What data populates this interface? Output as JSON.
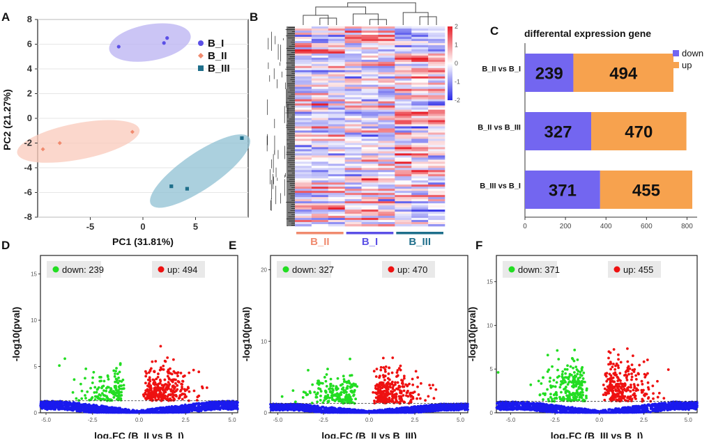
{
  "panel_labels": {
    "a": "A",
    "b": "B",
    "c": "C",
    "d": "D",
    "e": "E",
    "f": "F"
  },
  "chart_data": [
    {
      "id": "A",
      "type": "scatter",
      "title": "",
      "xlabel": "PC1 (31.81%)",
      "ylabel": "PC2 (21.27%)",
      "xlim": [
        -10,
        10
      ],
      "ylim": [
        -8,
        8
      ],
      "xticks": [
        "-5",
        "0",
        "5"
      ],
      "xtick_values": [
        -5,
        0,
        5
      ],
      "yticks": [
        "8",
        "6",
        "4",
        "2",
        "0",
        "-2",
        "-4",
        "-6",
        "-8"
      ],
      "ytick_values": [
        8,
        6,
        4,
        2,
        0,
        -2,
        -4,
        -6,
        -8
      ],
      "series": [
        {
          "name": "B_I",
          "color": "#5b50e6",
          "marker": "circle",
          "ellipse_color": "#b9b1f2",
          "points": [
            [
              -2.3,
              5.8
            ],
            [
              2.3,
              6.5
            ],
            [
              2.0,
              6.1
            ]
          ]
        },
        {
          "name": "B_II",
          "color": "#f08a6e",
          "marker": "diamond",
          "ellipse_color": "#f9c9bb",
          "points": [
            [
              -9.5,
              -2.5
            ],
            [
              -7.9,
              -2.0
            ],
            [
              -1.0,
              -1.1
            ]
          ]
        },
        {
          "name": "B_III",
          "color": "#1f6f8b",
          "marker": "square",
          "ellipse_color": "#8fc0d3",
          "points": [
            [
              2.7,
              -5.5
            ],
            [
              4.2,
              -5.7
            ],
            [
              9.4,
              -1.6
            ]
          ]
        }
      ]
    },
    {
      "id": "B",
      "type": "heatmap",
      "colorbar_ticks": [
        "2",
        "1",
        "0",
        "-1",
        "-2"
      ],
      "colorbar_values": [
        2,
        1,
        0,
        -1,
        -2
      ],
      "groups": [
        {
          "label": "B_II",
          "color": "#f08a6e"
        },
        {
          "label": "B_I",
          "color": "#5b50e6"
        },
        {
          "label": "B_III",
          "color": "#1f6f8b"
        }
      ]
    },
    {
      "id": "C",
      "type": "bar",
      "orientation": "horizontal",
      "stacked": true,
      "title": "differental expression gene",
      "categories": [
        "B_II vs B_I",
        "B_II vs B_III",
        "B_III vs B_I"
      ],
      "series": [
        {
          "name": "down",
          "color": "#7366f0",
          "values": [
            239,
            327,
            371
          ]
        },
        {
          "name": "up",
          "color": "#f7a24e",
          "values": [
            494,
            470,
            455
          ]
        }
      ],
      "xlim": [
        0,
        850
      ],
      "xticks": [
        "0",
        "200",
        "400",
        "600",
        "800"
      ],
      "xtick_values": [
        0,
        200,
        400,
        600,
        800
      ]
    },
    {
      "id": "D",
      "type": "scatter",
      "subtype": "volcano",
      "xlabel_main": "log",
      "xlabel_sub": "2",
      "xlabel_rest": "FC (B_II vs B_I)",
      "ylabel": "-log10(pval)",
      "xlim": [
        -5.3,
        5.3
      ],
      "ylim": [
        0,
        17
      ],
      "xticks": [
        "-5.0",
        "-2.5",
        "0.0",
        "2.5",
        "5.0"
      ],
      "xtick_values": [
        -5,
        -2.5,
        0,
        2.5,
        5
      ],
      "yticks": [
        "0",
        "5",
        "10",
        "15"
      ],
      "ytick_values": [
        0,
        5,
        10,
        15
      ],
      "down_label": "down: 239",
      "up_label": "up: 494",
      "down_count": 239,
      "up_count": 494,
      "threshold": 1.3,
      "max_y": 8.4
    },
    {
      "id": "E",
      "type": "scatter",
      "subtype": "volcano",
      "xlabel_main": "log",
      "xlabel_sub": "2",
      "xlabel_rest": "FC (B_II vs B_III)",
      "ylabel": "-log10(pval)",
      "xlim": [
        -5.4,
        5.4
      ],
      "ylim": [
        0,
        22
      ],
      "xticks": [
        "-5.0",
        "-2.5",
        "0.0",
        "2.5",
        "5.0"
      ],
      "xtick_values": [
        -5,
        -2.5,
        0,
        2.5,
        5
      ],
      "yticks": [
        "0",
        "10",
        "20"
      ],
      "ytick_values": [
        0,
        10,
        20
      ],
      "down_label": "down: 327",
      "up_label": "up: 470",
      "down_count": 327,
      "up_count": 470,
      "threshold": 1.3,
      "max_y": 10.2
    },
    {
      "id": "F",
      "type": "scatter",
      "subtype": "volcano",
      "xlabel_main": "log",
      "xlabel_sub": "2",
      "xlabel_rest": "FC (B_III vs B_I)",
      "ylabel": "-log10(pval)",
      "xlim": [
        -5.8,
        5.5
      ],
      "ylim": [
        0,
        18
      ],
      "xticks": [
        "-5.0",
        "-2.5",
        "0.0",
        "2.5",
        "5.0"
      ],
      "xtick_values": [
        -5,
        -2.5,
        0,
        2.5,
        5
      ],
      "yticks": [
        "0",
        "5",
        "10",
        "15"
      ],
      "ytick_values": [
        0,
        5,
        10,
        15
      ],
      "down_label": "down: 371",
      "up_label": "up: 455",
      "down_count": 371,
      "up_count": 455,
      "threshold": 1.3,
      "max_y": 10.4
    }
  ],
  "colors": {
    "sig_down": "#22dd22",
    "sig_up": "#ee1111",
    "nonsig": "#1a1aee",
    "heat_high": "#e8202a",
    "heat_low": "#2a2ae8",
    "frame": "#222222"
  }
}
